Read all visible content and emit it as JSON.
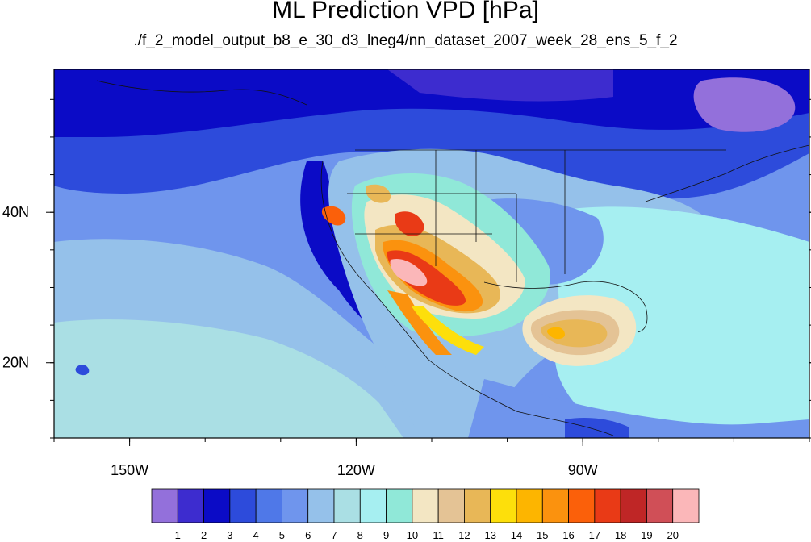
{
  "title": "ML Prediction VPD [hPa]",
  "subtitle": "./f_2_model_output_b8_e_30_d3_lneg4/nn_dataset_2007_week_28_ens_5_f_2",
  "map": {
    "lon_range": [
      -160,
      -60
    ],
    "lat_range": [
      10,
      59
    ],
    "x_ticks": [
      {
        "label": "150W",
        "lon": -150
      },
      {
        "label": "120W",
        "lon": -120
      },
      {
        "label": "90W",
        "lon": -90
      }
    ],
    "y_ticks": [
      {
        "label": "40N",
        "lat": 40
      },
      {
        "label": "20N",
        "lat": 20
      }
    ]
  },
  "colorbar": {
    "colors": [
      "#9370db",
      "#3d2ccf",
      "#0b0bc6",
      "#2d4bdb",
      "#4f78e8",
      "#6f95ed",
      "#95c1ea",
      "#aadfe4",
      "#a6eff1",
      "#90e8d8",
      "#f3e6c3",
      "#e4c395",
      "#e8b757",
      "#fddf0b",
      "#fdb500",
      "#fb920e",
      "#fb600a",
      "#e93a16",
      "#bf2626",
      "#d04f57",
      "#fbb7b9"
    ],
    "labels": [
      "1",
      "2",
      "3",
      "4",
      "5",
      "6",
      "7",
      "8",
      "9",
      "10",
      "11",
      "12",
      "13",
      "14",
      "15",
      "16",
      "17",
      "18",
      "19",
      "20"
    ]
  }
}
